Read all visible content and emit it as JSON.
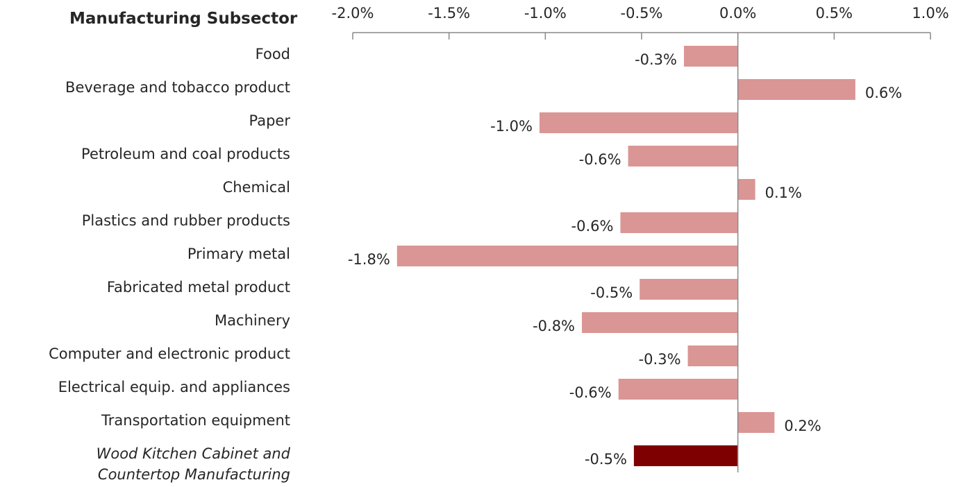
{
  "chart_data": {
    "type": "bar",
    "orientation": "horizontal",
    "title": "Manufacturing Subsector",
    "categories": [
      "Food",
      "Beverage and tobacco product",
      "Paper",
      "Petroleum and coal products",
      "Chemical",
      "Plastics and rubber products",
      "Primary metal",
      "Fabricated metal product",
      "Machinery",
      "Computer and electronic product",
      "Electrical equip. and appliances",
      "Transportation equipment",
      "Wood Kitchen Cabinet and Countertop Manufacturing"
    ],
    "values": [
      -0.28,
      0.61,
      -1.03,
      -0.57,
      0.09,
      -0.61,
      -1.77,
      -0.51,
      -0.81,
      -0.26,
      -0.62,
      0.19,
      -0.54
    ],
    "value_labels": [
      "-0.3%",
      "0.6%",
      "-1.0%",
      "-0.6%",
      "0.1%",
      "-0.6%",
      "-1.8%",
      "-0.5%",
      "-0.8%",
      "-0.3%",
      "-0.6%",
      "0.2%",
      "-0.5%"
    ],
    "colors": [
      "#da9694",
      "#da9694",
      "#da9694",
      "#da9694",
      "#da9694",
      "#da9694",
      "#da9694",
      "#da9694",
      "#da9694",
      "#da9694",
      "#da9694",
      "#da9694",
      "#7f0000"
    ],
    "xlim": [
      -2.0,
      1.0
    ],
    "xticks": [
      {
        "value": -2.0,
        "label": "-2.0%"
      },
      {
        "value": -1.5,
        "label": "-1.5%"
      },
      {
        "value": -1.0,
        "label": "-1.0%"
      },
      {
        "value": -0.5,
        "label": "-0.5%"
      },
      {
        "value": 0.0,
        "label": "0.0%"
      },
      {
        "value": 0.5,
        "label": "0.5%"
      },
      {
        "value": 1.0,
        "label": "1.0%"
      }
    ],
    "grid": false
  }
}
